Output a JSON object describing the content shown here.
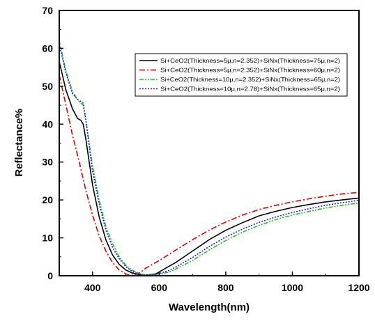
{
  "chart_data": {
    "type": "line",
    "title": "",
    "xlabel": "Wavelength(nm)",
    "ylabel": "Reflectance%",
    "xlim": [
      300,
      1200
    ],
    "ylim": [
      0,
      70
    ],
    "x_ticks": [
      400,
      600,
      800,
      1000,
      1200
    ],
    "y_ticks": [
      0,
      10,
      20,
      30,
      40,
      50,
      60,
      70
    ],
    "legend_position": "top-right",
    "grid": false,
    "series": [
      {
        "name": "Si+CeO2(Thickness=5μ,n=2.352)+SiNx(Thickness=75μ,n=2)",
        "color": "#000000",
        "dash": "solid",
        "x": [
          300,
          320,
          340,
          355,
          365,
          372,
          380,
          390,
          400,
          420,
          440,
          460,
          480,
          500,
          520,
          540,
          560,
          575,
          590,
          610,
          650,
          700,
          750,
          800,
          850,
          900,
          950,
          1000,
          1050,
          1100,
          1150,
          1200
        ],
        "y": [
          56.5,
          49,
          44,
          41.5,
          41,
          40,
          36,
          30,
          24,
          15.5,
          9.5,
          5.5,
          3,
          1.5,
          0.7,
          0.3,
          0.2,
          0.3,
          0.5,
          1.5,
          3.5,
          6.5,
          9.5,
          12,
          14,
          15.8,
          17,
          18,
          18.8,
          19.5,
          20,
          20.5
        ]
      },
      {
        "name": "Si+CeO2(Thickness=5μ,n=2.352)+SiNx(Thickness=60μ,n=2)",
        "color": "#e00000",
        "dash": "dashdot",
        "x": [
          300,
          320,
          340,
          360,
          380,
          400,
          420,
          440,
          460,
          480,
          500,
          515,
          530,
          545,
          560,
          580,
          600,
          650,
          700,
          750,
          800,
          850,
          900,
          950,
          1000,
          1050,
          1100,
          1150,
          1200
        ],
        "y": [
          53,
          45,
          37,
          30,
          22.5,
          16,
          10.5,
          6.5,
          3.5,
          1.5,
          0.5,
          0.1,
          0.3,
          1,
          2,
          3,
          4,
          6.8,
          9.5,
          12,
          14.2,
          16,
          17.5,
          18.6,
          19.5,
          20.3,
          21,
          21.6,
          22
        ]
      },
      {
        "name": "Si+CeO2(Thickness=10μ,n=2.352)+SiNx(Thickness=65μ,n=2)",
        "color": "#20c020",
        "dash": "dashdotdot",
        "x": [
          300,
          320,
          340,
          355,
          365,
          372,
          380,
          390,
          400,
          420,
          440,
          460,
          480,
          500,
          520,
          540,
          560,
          580,
          600,
          630,
          650,
          700,
          750,
          800,
          850,
          900,
          950,
          1000,
          1050,
          1100,
          1150,
          1200
        ],
        "y": [
          62,
          54,
          48.5,
          46.5,
          45.5,
          45,
          41,
          35,
          29,
          20,
          13,
          8.5,
          5,
          2.8,
          1.4,
          0.6,
          0.2,
          0.2,
          0.4,
          1,
          1.8,
          4,
          6.8,
          9.3,
          11.5,
          13.3,
          14.8,
          16,
          17,
          17.9,
          18.6,
          19.2
        ]
      },
      {
        "name": "Si+CeO2(Thickness=10μ,n=2.78)+SiNx(Thickness=65μ,n=2)",
        "color": "#2020e0",
        "dash": "dotted",
        "x": [
          300,
          320,
          340,
          355,
          365,
          372,
          380,
          390,
          400,
          420,
          440,
          460,
          480,
          500,
          520,
          540,
          560,
          580,
          600,
          630,
          650,
          700,
          750,
          800,
          850,
          900,
          950,
          1000,
          1050,
          1100,
          1150,
          1200
        ],
        "y": [
          61,
          53.5,
          48,
          46.5,
          46,
          45.5,
          41,
          34,
          27.5,
          19,
          12,
          7.5,
          4.5,
          2.4,
          1.1,
          0.4,
          0.1,
          0.2,
          0.6,
          1.4,
          2.3,
          4.8,
          7.7,
          10.2,
          12.3,
          14.1,
          15.5,
          16.7,
          17.7,
          18.6,
          19.3,
          19.9
        ]
      }
    ]
  }
}
